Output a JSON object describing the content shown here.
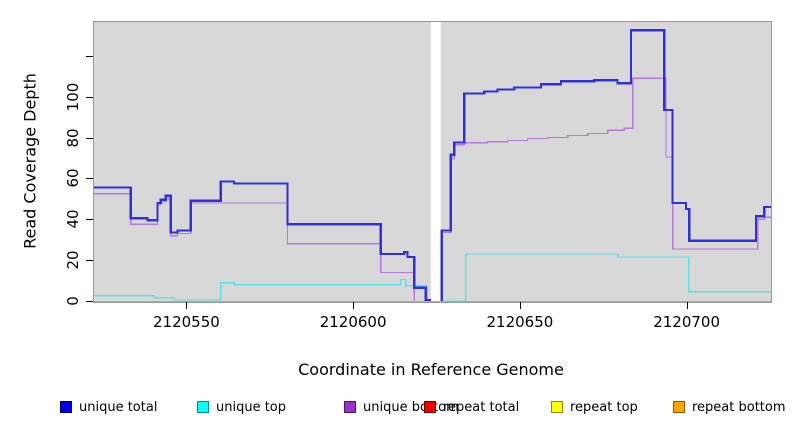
{
  "chart_data": {
    "type": "line",
    "title": "",
    "xlabel": "Coordinate in Reference Genome",
    "ylabel": "Read Coverage Depth",
    "xlim": [
      2120522,
      2120725
    ],
    "ylim": [
      0,
      137
    ],
    "grid": false,
    "panel_bg": "#d8d8d8",
    "x_ticks": [
      {
        "value": 2120550,
        "label": "2120550"
      },
      {
        "value": 2120600,
        "label": "2120600"
      },
      {
        "value": 2120650,
        "label": "2120650"
      },
      {
        "value": 2120700,
        "label": "2120700"
      }
    ],
    "y_ticks": [
      {
        "value": 0,
        "label": "0"
      },
      {
        "value": 20,
        "label": "20"
      },
      {
        "value": 40,
        "label": "40"
      },
      {
        "value": 60,
        "label": "60"
      },
      {
        "value": 80,
        "label": "80"
      },
      {
        "value": 100,
        "label": "100"
      },
      {
        "value": 120,
        "label": ""
      }
    ],
    "no_data_gap": {
      "x0": 2120623,
      "x1": 2120626,
      "color": "#ffffff"
    },
    "series": [
      {
        "name": "unique top",
        "color": "#55e2e8",
        "width": 1.4,
        "segments": [
          {
            "points": [
              [
                2120522,
                3
              ],
              [
                2120540,
                2
              ],
              [
                2120546,
                1
              ],
              [
                2120560,
                9.5
              ],
              [
                2120564,
                8.5
              ],
              [
                2120614,
                11
              ],
              [
                2120615.5,
                8
              ],
              [
                2120622,
                0.4
              ]
            ],
            "end": 2120623
          },
          {
            "points": [
              [
                2120626,
                0.4
              ],
              [
                2120633.5,
                23.5
              ],
              [
                2120679,
                22
              ],
              [
                2120700.3,
                5
              ]
            ],
            "end": 2120725
          }
        ]
      },
      {
        "name": "unique bottom",
        "color": "#b778e0",
        "width": 1.3,
        "segments": [
          {
            "points": [
              [
                2120522,
                53
              ],
              [
                2120533,
                38
              ],
              [
                2120541,
                47.5
              ],
              [
                2120542,
                49
              ],
              [
                2120543.5,
                50.5
              ],
              [
                2120545,
                32.5
              ],
              [
                2120547,
                33.5
              ],
              [
                2120551,
                48.5
              ],
              [
                2120580,
                28.5
              ],
              [
                2120608,
                14.5
              ],
              [
                2120618,
                0.3
              ]
            ],
            "end": 2120623
          },
          {
            "points": [
              [
                2120626,
                0
              ],
              [
                2120626.3,
                34
              ],
              [
                2120629,
                70
              ],
              [
                2120630,
                77
              ],
              [
                2120633,
                78
              ],
              [
                2120640,
                78.5
              ],
              [
                2120646,
                79
              ],
              [
                2120652,
                80
              ],
              [
                2120658,
                80.5
              ],
              [
                2120664,
                81.5
              ],
              [
                2120670,
                82.5
              ],
              [
                2120676,
                84
              ],
              [
                2120681,
                85
              ],
              [
                2120683.5,
                109.5
              ],
              [
                2120693.5,
                71
              ],
              [
                2120695.5,
                26
              ],
              [
                2120721,
                40.5
              ],
              [
                2120723,
                41.5
              ]
            ],
            "end": 2120725
          }
        ]
      },
      {
        "name": "unique total",
        "color": "#3030d8",
        "width": 2.2,
        "segments": [
          {
            "points": [
              [
                2120522,
                56
              ],
              [
                2120533,
                41
              ],
              [
                2120538,
                40
              ],
              [
                2120541,
                48.5
              ],
              [
                2120542,
                50
              ],
              [
                2120543.5,
                52
              ],
              [
                2120545,
                34
              ],
              [
                2120547,
                35
              ],
              [
                2120551,
                49.5
              ],
              [
                2120560,
                59
              ],
              [
                2120564,
                58
              ],
              [
                2120580,
                38
              ],
              [
                2120608,
                23.5
              ],
              [
                2120615,
                24.5
              ],
              [
                2120616,
                22
              ],
              [
                2120618,
                7
              ],
              [
                2120621.5,
                1
              ],
              [
                2120622.7,
                0
              ]
            ],
            "end": 2120623
          },
          {
            "points": [
              [
                2120626,
                0
              ],
              [
                2120626.3,
                35
              ],
              [
                2120629,
                72
              ],
              [
                2120630,
                78
              ],
              [
                2120633,
                102
              ],
              [
                2120639,
                103
              ],
              [
                2120643,
                104
              ],
              [
                2120648,
                105
              ],
              [
                2120656,
                106.5
              ],
              [
                2120662,
                108
              ],
              [
                2120672,
                108.5
              ],
              [
                2120679,
                107
              ],
              [
                2120683,
                133
              ],
              [
                2120693,
                94
              ],
              [
                2120695.5,
                48.5
              ],
              [
                2120699.5,
                45.5
              ],
              [
                2120700.5,
                30
              ],
              [
                2120720.5,
                42
              ],
              [
                2120723,
                46.5
              ]
            ],
            "end": 2120725
          }
        ]
      },
      {
        "name": "repeat total",
        "color": "#dd0000",
        "width": 1.5,
        "segments": [
          {
            "points": [
              [
                2120522,
                0
              ]
            ],
            "end": 2120725
          }
        ]
      },
      {
        "name": "repeat top",
        "color": "#ffff00",
        "width": 1.5,
        "segments": [
          {
            "points": [
              [
                2120522,
                0
              ]
            ],
            "end": 2120725
          }
        ]
      },
      {
        "name": "repeat bottom",
        "color": "#ffa11e",
        "width": 2,
        "segments": [
          {
            "points": [
              [
                2120522,
                0
              ]
            ],
            "end": 2120725
          }
        ]
      }
    ],
    "legend": {
      "position": "bottom",
      "items": [
        {
          "label": "unique total",
          "fill": "#0000ee",
          "border": "#00007a",
          "x": 60
        },
        {
          "label": "unique top",
          "fill": "#00ffff",
          "border": "#008b8b",
          "x": 197
        },
        {
          "label": "unique bottom",
          "fill": "#9932cc",
          "border": "#4b1472",
          "x": 344
        },
        {
          "label": "repeat total",
          "fill": "#ee0000",
          "border": "#7a0000",
          "x": 424
        },
        {
          "label": "repeat top",
          "fill": "#ffff00",
          "border": "#8b8b00",
          "x": 551
        },
        {
          "label": "repeat bottom",
          "fill": "#ffa500",
          "border": "#8b5a00",
          "x": 673
        }
      ]
    }
  }
}
